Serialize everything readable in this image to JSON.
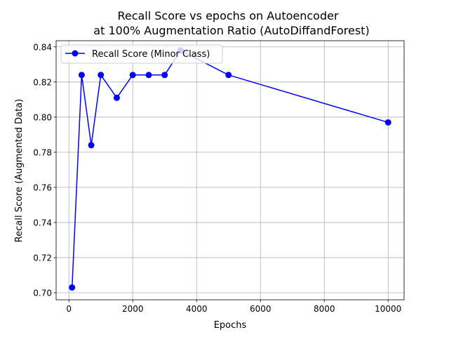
{
  "chart_data": {
    "type": "line",
    "title_line1": "Recall Score vs epochs on Autoencoder",
    "title_line2": "at 100% Augmentation Ratio (AutoDiffandForest)",
    "xlabel": "Epochs",
    "ylabel": "Recall Score (Augmented Data)",
    "xlim": [
      -400,
      10500
    ],
    "ylim": [
      0.696,
      0.8435
    ],
    "xticks": [
      0,
      2000,
      4000,
      6000,
      8000,
      10000
    ],
    "xtick_labels": [
      "0",
      "2000",
      "4000",
      "6000",
      "8000",
      "10000"
    ],
    "yticks": [
      0.7,
      0.72,
      0.74,
      0.76,
      0.78,
      0.8,
      0.82,
      0.84
    ],
    "ytick_labels": [
      "0.70",
      "0.72",
      "0.74",
      "0.76",
      "0.78",
      "0.80",
      "0.82",
      "0.84"
    ],
    "grid": true,
    "legend_position": "upper-left",
    "series": [
      {
        "name": "Recall Score (Minor Class)",
        "color": "#0000ff",
        "marker": "circle",
        "x": [
          100,
          400,
          700,
          1000,
          1500,
          2000,
          2500,
          3000,
          3500,
          5000,
          10000
        ],
        "y": [
          0.703,
          0.824,
          0.784,
          0.824,
          0.811,
          0.824,
          0.824,
          0.824,
          0.838,
          0.824,
          0.797
        ]
      }
    ]
  }
}
